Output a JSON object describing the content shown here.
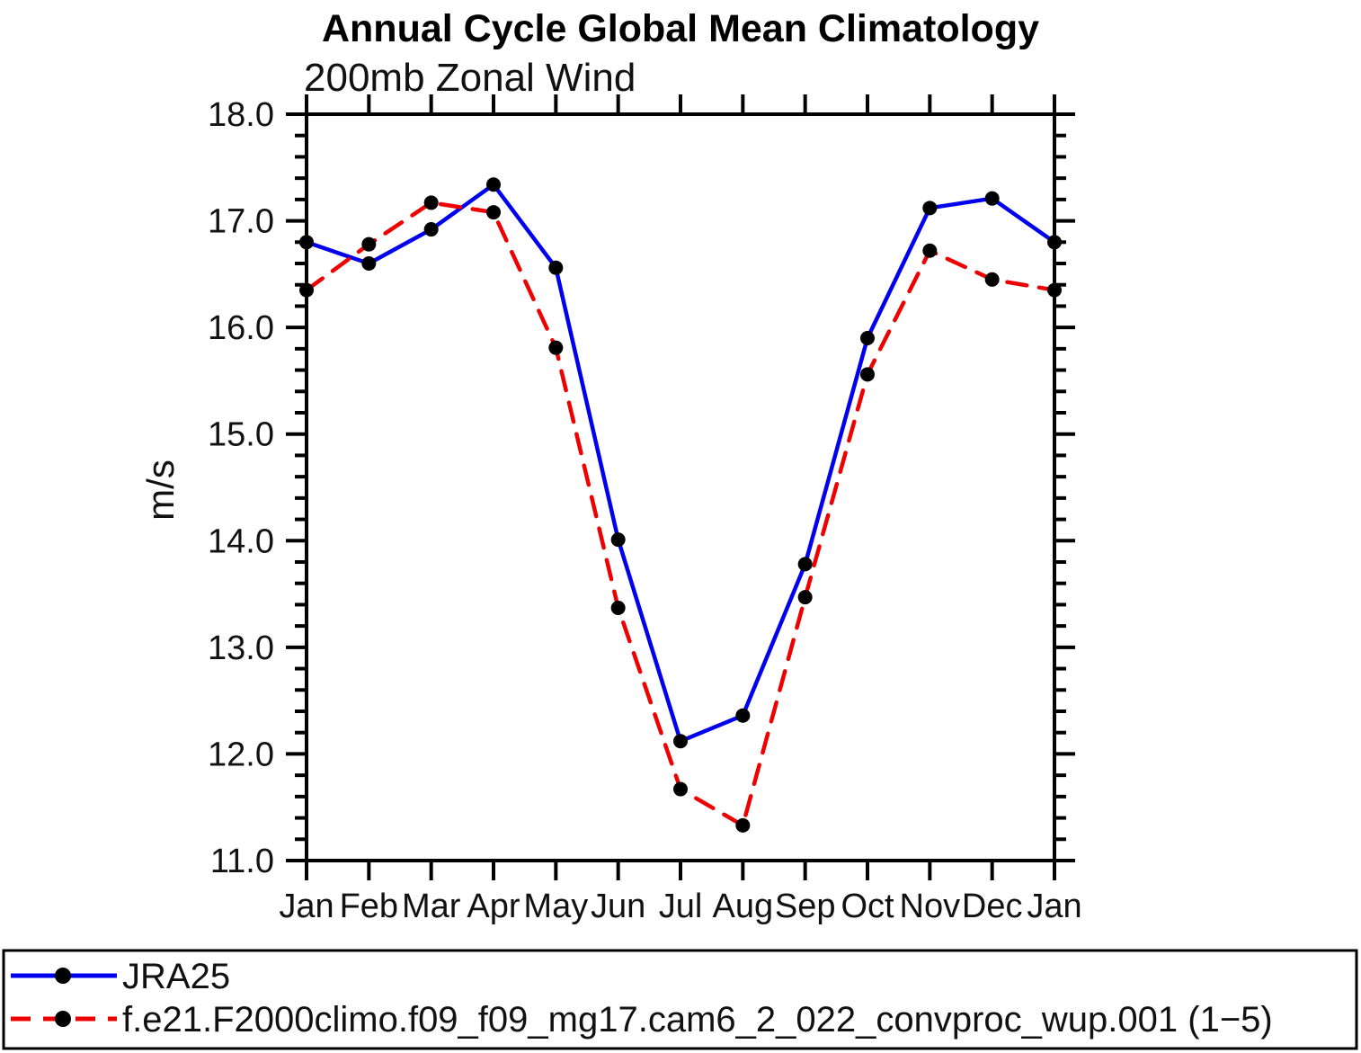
{
  "title": "Annual Cycle Global Mean Climatology",
  "subtitle": "200mb Zonal Wind",
  "ylabel": "m/s",
  "colors": {
    "axis": "#000000",
    "marker": "#000000",
    "series1": "#0000EE",
    "series2": "#EE0000",
    "background": "#FFFFFF"
  },
  "legend": {
    "position": "bottom",
    "items": [
      {
        "label": "JRA25"
      },
      {
        "label": "f.e21.F2000climo.f09_f09_mg17.cam6_2_022_convproc_wup.001 (1−5)"
      }
    ]
  },
  "chart_data": {
    "type": "line",
    "title": "Annual Cycle Global Mean Climatology",
    "subtitle": "200mb Zonal Wind",
    "xlabel": "",
    "ylabel": "m/s",
    "ylim": [
      11.0,
      18.0
    ],
    "ytick_step": 1.0,
    "yminor_step": 0.2,
    "ytick_labels": [
      "11.0",
      "12.0",
      "13.0",
      "14.0",
      "15.0",
      "16.0",
      "17.0",
      "18.0"
    ],
    "grid": false,
    "legend_position": "bottom",
    "categories": [
      "Jan",
      "Feb",
      "Mar",
      "Apr",
      "May",
      "Jun",
      "Jul",
      "Aug",
      "Sep",
      "Oct",
      "Nov",
      "Dec",
      "Jan"
    ],
    "series": [
      {
        "name": "JRA25",
        "color": "#0000EE",
        "line_style": "solid",
        "marker": "filled-circle",
        "marker_color": "#000000",
        "values": [
          16.8,
          16.6,
          16.92,
          17.34,
          16.56,
          14.01,
          12.12,
          12.36,
          13.78,
          15.9,
          17.12,
          17.21,
          16.8
        ]
      },
      {
        "name": "f.e21.F2000climo.f09_f09_mg17.cam6_2_022_convproc_wup.001 (1−5)",
        "color": "#EE0000",
        "line_style": "dashed",
        "marker": "filled-circle",
        "marker_color": "#000000",
        "values": [
          16.35,
          16.78,
          17.17,
          17.08,
          15.81,
          13.37,
          11.67,
          11.33,
          13.47,
          15.56,
          16.72,
          16.45,
          16.35
        ]
      }
    ]
  }
}
